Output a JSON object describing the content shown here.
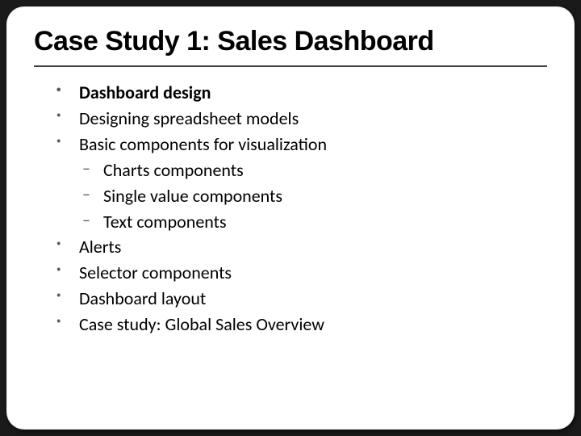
{
  "slide": {
    "title": "Case Study 1: Sales Dashboard",
    "title_font_family": "Verdana",
    "title_font_weight": "bold",
    "title_font_size_pt": 26,
    "title_color": "#000000",
    "divider_color": "#404040",
    "background_color": "#ffffff",
    "outer_background_color": "#1a1a1a",
    "body_font_family": "Segoe UI, Calibri",
    "body_font_size_pt": 17,
    "body_color": "#000000",
    "bullet_color": "#595959",
    "items": [
      {
        "text": "Dashboard design",
        "bold": true
      },
      {
        "text": "Designing spreadsheet models",
        "bold": false
      },
      {
        "text": "Basic components for visualization",
        "bold": false,
        "subitems": [
          {
            "text": "Charts components"
          },
          {
            "text": "Single value components"
          },
          {
            "text": "Text components"
          }
        ]
      },
      {
        "text": "Alerts",
        "bold": false
      },
      {
        "text": "Selector components",
        "bold": false
      },
      {
        "text": "Dashboard layout",
        "bold": false
      },
      {
        "text": "Case study: Global Sales Overview",
        "bold": false
      }
    ]
  }
}
